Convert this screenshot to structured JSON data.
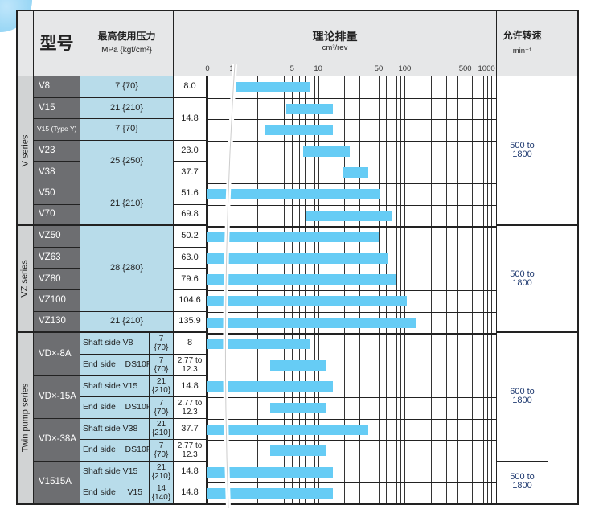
{
  "header": {
    "model": "型号",
    "pressure_title": "最高使用压力",
    "pressure_unit": "MPa {kgf/cm²}",
    "displacement_title": "理论排量",
    "displacement_unit": "cm³/rev",
    "speed_title": "允许转速",
    "speed_unit": "min⁻¹"
  },
  "colors": {
    "bar": "#66ccf5",
    "model_bg": "#6d6e71",
    "pressure_bg": "#b8dcea",
    "header_bg": "#e6e7e8"
  },
  "chart_data": {
    "type": "bar",
    "orientation": "horizontal",
    "title": "理论排量",
    "xlabel": "cm³/rev",
    "xscale": "log (broken axis between 0 and 1)",
    "xlim": [
      0,
      1000
    ],
    "tick_labels": [
      "0",
      "1",
      "5",
      "10",
      "50",
      "100",
      "500",
      "1000"
    ],
    "grid": true,
    "ranges": [
      [
        1.1,
        8
      ],
      [
        4.3,
        14.8
      ],
      [
        2.4,
        14.8
      ],
      [
        6.7,
        23.0
      ],
      [
        19,
        37.7
      ],
      [
        0,
        51.6
      ],
      [
        7.3,
        69.8
      ],
      [
        0,
        50.2
      ],
      [
        0,
        63.0
      ],
      [
        0,
        79.6
      ],
      [
        0,
        104.6
      ],
      [
        0,
        135.9
      ],
      [
        0,
        8
      ],
      [
        2.77,
        12.3
      ],
      [
        0,
        14.8
      ],
      [
        2.77,
        12.3
      ],
      [
        0,
        37.7
      ],
      [
        2.77,
        12.3
      ],
      [
        0,
        14.8
      ],
      [
        0,
        14.8
      ]
    ]
  },
  "series": [
    {
      "label": "V series",
      "rows": 7
    },
    {
      "label": "VZ series",
      "rows": 5
    },
    {
      "label": "Twin pump series",
      "rows": 8
    }
  ],
  "models": [
    {
      "label": "V8",
      "rows": 1
    },
    {
      "label": "V15",
      "rows": 1
    },
    {
      "label": "V15 (Type Y)",
      "rows": 1,
      "small": true
    },
    {
      "label": "V23",
      "rows": 1
    },
    {
      "label": "V38",
      "rows": 1
    },
    {
      "label": "V50",
      "rows": 1
    },
    {
      "label": "V70",
      "rows": 1
    },
    {
      "label": "VZ50",
      "rows": 1
    },
    {
      "label": "VZ63",
      "rows": 1
    },
    {
      "label": "VZ80",
      "rows": 1
    },
    {
      "label": "VZ100",
      "rows": 1
    },
    {
      "label": "VZ130",
      "rows": 1
    },
    {
      "label": "VD×-8A",
      "rows": 2
    },
    {
      "label": "VD×-15A",
      "rows": 2
    },
    {
      "label": "VD×-38A",
      "rows": 2
    },
    {
      "label": "V1515A",
      "rows": 2
    }
  ],
  "pressures": [
    {
      "label": "7 {70}",
      "rows": 1
    },
    {
      "label": "21 {210}",
      "rows": 1
    },
    {
      "label": "7 {70}",
      "rows": 1
    },
    {
      "label": "25 {250}",
      "rows": 2
    },
    {
      "label": "21 {210}",
      "rows": 2
    },
    {
      "label": "28 {280}",
      "rows": 4
    },
    {
      "label": "21 {210}",
      "rows": 1
    }
  ],
  "twin": [
    {
      "side": "Shaft side V8",
      "pressure": "7 {70}"
    },
    {
      "side": "End side    DS10P",
      "pressure": "7 {70}"
    },
    {
      "side": "Shaft side V15",
      "pressure": "21 {210}"
    },
    {
      "side": "End side    DS10P",
      "pressure": "7 {70}"
    },
    {
      "side": "Shaft side V38",
      "pressure": "21 {210}"
    },
    {
      "side": "End side    DS10P",
      "pressure": "7 {70}"
    },
    {
      "side": "Shaft side V15",
      "pressure": "21 {210}"
    },
    {
      "side": "End side     V15",
      "pressure": "14 {140}"
    }
  ],
  "values": [
    {
      "label": "8.0",
      "rows": 1
    },
    {
      "label": "14.8",
      "rows": 2
    },
    {
      "label": "23.0",
      "rows": 1
    },
    {
      "label": "37.7",
      "rows": 1
    },
    {
      "label": "51.6",
      "rows": 1
    },
    {
      "label": "69.8",
      "rows": 1
    },
    {
      "label": "50.2",
      "rows": 1
    },
    {
      "label": "63.0",
      "rows": 1
    },
    {
      "label": "79.6",
      "rows": 1
    },
    {
      "label": "104.6",
      "rows": 1
    },
    {
      "label": "135.9",
      "rows": 1
    },
    {
      "label": "8",
      "rows": 1
    },
    {
      "label": "2.77 to 12.3",
      "rows": 1
    },
    {
      "label": "14.8",
      "rows": 1
    },
    {
      "label": "2.77 to 12.3",
      "rows": 1
    },
    {
      "label": "37.7",
      "rows": 1
    },
    {
      "label": "2.77 to 12.3",
      "rows": 1
    },
    {
      "label": "14.8",
      "rows": 1
    },
    {
      "label": "14.8",
      "rows": 1
    }
  ],
  "speeds": [
    {
      "label": "500 to 1800",
      "rows": 7
    },
    {
      "label": "500 to 1800",
      "rows": 5
    },
    {
      "label": "600 to 1800",
      "rows": 6
    },
    {
      "label": "500 to 1800",
      "rows": 2
    }
  ]
}
